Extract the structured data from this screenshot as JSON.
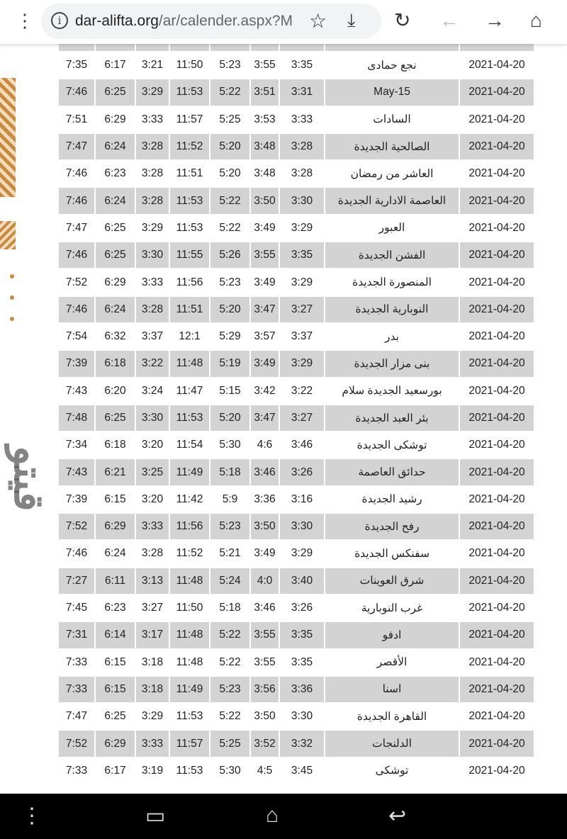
{
  "browser": {
    "url_host": "dar-alifta.org",
    "url_path": "/ar/calender.aspx?M",
    "icons": [
      "menu-icon",
      "info-icon",
      "star-icon",
      "download-icon",
      "reload-icon",
      "back-icon",
      "forward-icon",
      "home-icon"
    ]
  },
  "watermark": "قيتو",
  "rows": [
    [
      "7:35",
      "6:17",
      "3:21",
      "11:50",
      "5:23",
      "3:55",
      "3:35",
      "نجع حمادى",
      "2021-04-20"
    ],
    [
      "7:46",
      "6:25",
      "3:29",
      "11:53",
      "5:22",
      "3:51",
      "3:31",
      "May-15",
      "2021-04-20"
    ],
    [
      "7:51",
      "6:29",
      "3:33",
      "11:57",
      "5:25",
      "3:53",
      "3:33",
      "السادات",
      "2021-04-20"
    ],
    [
      "7:47",
      "6:24",
      "3:28",
      "11:52",
      "5:20",
      "3:48",
      "3:28",
      "الصالحية الجديدة",
      "2021-04-20"
    ],
    [
      "7:46",
      "6:23",
      "3:28",
      "11:51",
      "5:20",
      "3:48",
      "3:28",
      "العاشر من رمضان",
      "2021-04-20"
    ],
    [
      "7:46",
      "6:24",
      "3:28",
      "11:53",
      "5:22",
      "3:50",
      "3:30",
      "العاصمة الادارية الجديدة",
      "2021-04-20"
    ],
    [
      "7:47",
      "6:25",
      "3:29",
      "11:53",
      "5:22",
      "3:49",
      "3:29",
      "العبور",
      "2021-04-20"
    ],
    [
      "7:46",
      "6:25",
      "3:30",
      "11:55",
      "5:26",
      "3:55",
      "3:35",
      "الفشن الجديدة",
      "2021-04-20"
    ],
    [
      "7:52",
      "6:29",
      "3:33",
      "11:56",
      "5:23",
      "3:49",
      "3:29",
      "المنصورة الجديدة",
      "2021-04-20"
    ],
    [
      "7:46",
      "6:24",
      "3:28",
      "11:51",
      "5:20",
      "3:47",
      "3:27",
      "النوبارية الجديدة",
      "2021-04-20"
    ],
    [
      "7:54",
      "6:32",
      "3:37",
      "12:1",
      "5:29",
      "3:57",
      "3:37",
      "بدر",
      "2021-04-20"
    ],
    [
      "7:39",
      "6:18",
      "3:22",
      "11:48",
      "5:19",
      "3:49",
      "3:29",
      "بنى مزار الجديدة",
      "2021-04-20"
    ],
    [
      "7:43",
      "6:20",
      "3:24",
      "11:47",
      "5:15",
      "3:42",
      "3:22",
      "بورسعيد الجديدة سلام",
      "2021-04-20"
    ],
    [
      "7:48",
      "6:25",
      "3:30",
      "11:53",
      "5:20",
      "3:47",
      "3:27",
      "بئر العبد الجديدة",
      "2021-04-20"
    ],
    [
      "7:34",
      "6:18",
      "3:20",
      "11:54",
      "5:30",
      "4:6",
      "3:46",
      "توشكى الجديدة",
      "2021-04-20"
    ],
    [
      "7:43",
      "6:21",
      "3:25",
      "11:49",
      "5:18",
      "3:46",
      "3:26",
      "حدائق العاصمة",
      "2021-04-20"
    ],
    [
      "7:39",
      "6:15",
      "3:20",
      "11:42",
      "5:9",
      "3:36",
      "3:16",
      "رشيد الجديدة",
      "2021-04-20"
    ],
    [
      "7:52",
      "6:29",
      "3:33",
      "11:56",
      "5:23",
      "3:50",
      "3:30",
      "رفح الجديدة",
      "2021-04-20"
    ],
    [
      "7:46",
      "6:24",
      "3:28",
      "11:52",
      "5:21",
      "3:49",
      "3:29",
      "سفنكس الجديدة",
      "2021-04-20"
    ],
    [
      "7:27",
      "6:11",
      "3:13",
      "11:48",
      "5:24",
      "4:0",
      "3:40",
      "شرق العوينات",
      "2021-04-20"
    ],
    [
      "7:45",
      "6:23",
      "3:27",
      "11:50",
      "5:18",
      "3:46",
      "3:26",
      "غرب النوبارية",
      "2021-04-20"
    ],
    [
      "7:31",
      "6:14",
      "3:17",
      "11:48",
      "5:22",
      "3:55",
      "3:35",
      "ادفو",
      "2021-04-20"
    ],
    [
      "7:33",
      "6:15",
      "3:18",
      "11:48",
      "5:22",
      "3:55",
      "3:35",
      "الأقصر",
      "2021-04-20"
    ],
    [
      "7:33",
      "6:15",
      "3:18",
      "11:49",
      "5:23",
      "3:56",
      "3:36",
      "اسنا",
      "2021-04-20"
    ],
    [
      "7:47",
      "6:25",
      "3:29",
      "11:53",
      "5:22",
      "3:50",
      "3:30",
      "القاهرة الجديدة",
      "2021-04-20"
    ],
    [
      "7:52",
      "6:29",
      "3:33",
      "11:57",
      "5:25",
      "3:52",
      "3:32",
      "الدلنجات",
      "2021-04-20"
    ],
    [
      "7:33",
      "6:17",
      "3:19",
      "11:53",
      "5:30",
      "4:5",
      "3:45",
      "توشكى",
      "2021-04-20"
    ]
  ]
}
